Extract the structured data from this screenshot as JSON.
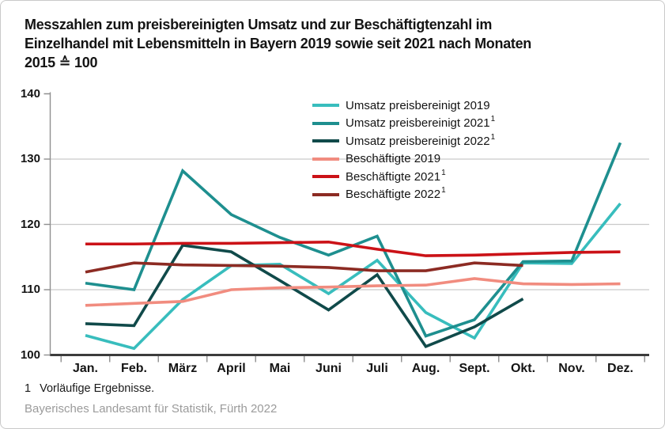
{
  "header": {
    "title_lines": [
      "Messzahlen zum preisbereinigten Umsatz und zur Beschäftigtenzahl im",
      "Einzelhandel mit Lebensmitteln in Bayern 2019 sowie seit 2021 nach Monaten",
      "2015 ≙ 100"
    ]
  },
  "chart_data": {
    "type": "line",
    "title": "Messzahlen zum preisbereinigten Umsatz und zur Beschäftigtenzahl im Einzelhandel mit Lebensmitteln in Bayern 2019 sowie seit 2021 nach Monaten",
    "subtitle": "2015 ≙ 100",
    "categories": [
      "Jan.",
      "Feb.",
      "März",
      "April",
      "Mai",
      "Juni",
      "Juli",
      "Aug.",
      "Sept.",
      "Okt.",
      "Nov.",
      "Dez."
    ],
    "ylim": [
      100,
      140
    ],
    "yticks": [
      100,
      110,
      120,
      130,
      140
    ],
    "grid": "horizontal-gridlines-at-110-120-130",
    "legend_position": "top-center-inside",
    "series": [
      {
        "name": "Umsatz preisbereinigt 2019",
        "sup": null,
        "color": "#38BDBD",
        "values": [
          103.0,
          101.0,
          108.5,
          113.7,
          113.9,
          109.4,
          114.5,
          106.5,
          102.6,
          114.1,
          114.0,
          123.2
        ]
      },
      {
        "name": "Umsatz preisbereinigt 2021",
        "sup": "1",
        "color": "#1E8F8F",
        "values": [
          111.0,
          110.0,
          128.2,
          121.5,
          118.0,
          115.3,
          118.2,
          102.9,
          105.4,
          114.3,
          114.4,
          132.5
        ]
      },
      {
        "name": "Umsatz preisbereinigt 2022",
        "sup": "1",
        "color": "#104A4A",
        "values": [
          104.8,
          104.5,
          116.8,
          115.8,
          111.4,
          106.9,
          112.3,
          101.3,
          104.3,
          108.6,
          null,
          null
        ]
      },
      {
        "name": "Beschäftigte 2019",
        "sup": null,
        "color": "#F18C7F",
        "values": [
          107.6,
          107.9,
          108.2,
          110.0,
          110.3,
          110.4,
          110.6,
          110.7,
          111.7,
          110.9,
          110.8,
          110.9
        ]
      },
      {
        "name": "Beschäftigte 2021",
        "sup": "1",
        "color": "#CB1217",
        "values": [
          117.0,
          117.0,
          117.1,
          117.1,
          117.2,
          117.3,
          116.2,
          115.2,
          115.3,
          115.5,
          115.7,
          115.8
        ]
      },
      {
        "name": "Beschäftigte 2022",
        "sup": "1",
        "color": "#8C2B23",
        "values": [
          112.7,
          114.1,
          113.8,
          113.7,
          113.6,
          113.4,
          112.9,
          112.9,
          114.1,
          113.7,
          null,
          null
        ]
      }
    ]
  },
  "footer": {
    "footnote_marker": "1",
    "footnote_text": "Vorläufige Ergebnisse.",
    "source": "Bayerisches Landesamt für Statistik, Fürth 2022"
  }
}
